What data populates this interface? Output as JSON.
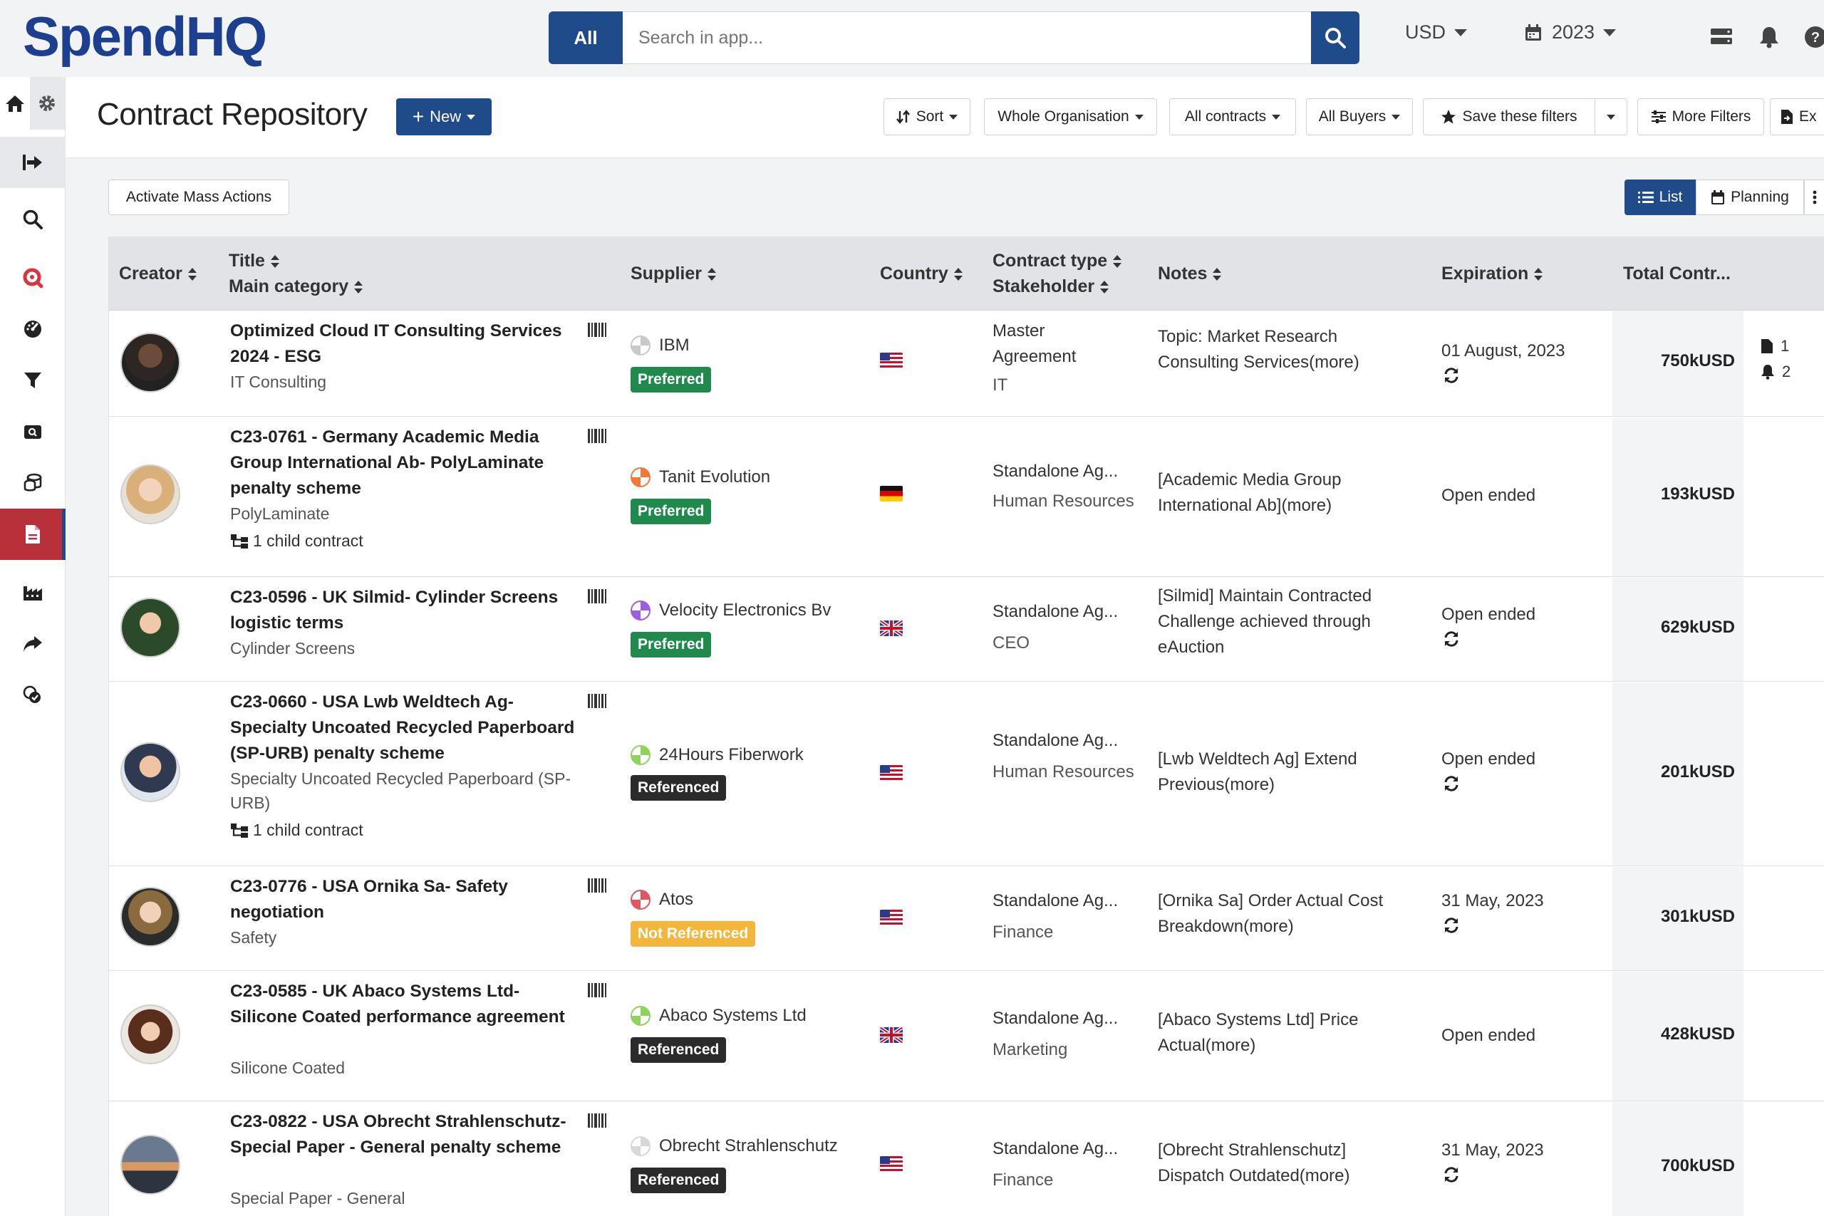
{
  "app": {
    "logo_text": "SpendHQ"
  },
  "search": {
    "scope_label": "All",
    "placeholder": "Search in app..."
  },
  "topbar": {
    "currency": "USD",
    "year": "2023"
  },
  "page": {
    "title": "Contract Repository",
    "new_label": "New"
  },
  "filters": {
    "sort": "Sort",
    "organisation": "Whole Organisation",
    "contracts": "All contracts",
    "buyers": "All Buyers",
    "save": "Save these filters",
    "more": "More Filters",
    "export": "Ex"
  },
  "toolbar": {
    "mass_actions": "Activate Mass Actions",
    "view_list": "List",
    "view_planning": "Planning"
  },
  "columns": {
    "creator": "Creator",
    "title": "Title",
    "main_category": "Main category",
    "supplier": "Supplier",
    "country": "Country",
    "contract_type": "Contract type",
    "stakeholder": "Stakeholder",
    "notes": "Notes",
    "expiration": "Expiration",
    "total": "Total Contr..."
  },
  "rows": [
    {
      "title": "Optimized Cloud IT Consulting Services 2024 - ESG",
      "category": "IT Consulting",
      "child": "",
      "supplier": "IBM",
      "status": "Preferred",
      "country": "US",
      "contract_type": "Master Agreement",
      "stakeholder": "IT",
      "notes": "Topic: Market Research Consulting Services(more)",
      "expiration": "01 August, 2023",
      "renew": true,
      "total": "750kUSD",
      "docs": "1",
      "alerts": "2",
      "supplier_color": "#c9c9c9"
    },
    {
      "title": "C23-0761 - Germany Academic Media Group International Ab- PolyLaminate penalty scheme",
      "category": "PolyLaminate",
      "child": "1 child contract",
      "supplier": "Tanit Evolution",
      "status": "Preferred",
      "country": "DE",
      "contract_type": "Standalone Ag...",
      "stakeholder": "Human Resources",
      "notes": "[Academic Media Group International Ab](more)",
      "expiration": "Open ended",
      "renew": false,
      "total": "193kUSD",
      "supplier_color": "#f07a3a"
    },
    {
      "title": "C23-0596 - UK Silmid- Cylinder Screens logistic terms",
      "category": "Cylinder Screens",
      "child": "",
      "supplier": "Velocity Electronics Bv",
      "status": "Preferred",
      "country": "UK",
      "contract_type": "Standalone Ag...",
      "stakeholder": "CEO",
      "notes": "[Silmid] Maintain Contracted Challenge achieved through eAuction",
      "expiration": "Open ended",
      "renew": true,
      "total": "629kUSD",
      "supplier_color": "#9b5de5"
    },
    {
      "title": "C23-0660 - USA Lwb Weldtech Ag- Specialty Uncoated Recycled Paperboard (SP-URB) penalty scheme",
      "category": "Specialty Uncoated Recycled Paperboard (SP-URB)",
      "child": "1 child contract",
      "supplier": "24Hours Fiberwork",
      "status": "Referenced",
      "country": "US",
      "contract_type": "Standalone Ag...",
      "stakeholder": "Human Resources",
      "notes": "[Lwb Weldtech Ag] Extend Previous(more)",
      "expiration": "Open ended",
      "renew": true,
      "total": "201kUSD",
      "supplier_color": "#8fd35a"
    },
    {
      "title": "C23-0776 - USA Ornika Sa- Safety negotiation",
      "category": "Safety",
      "child": "",
      "supplier": "Atos",
      "status": "Not Referenced",
      "country": "US",
      "contract_type": "Standalone Ag...",
      "stakeholder": "Finance",
      "notes": "[Ornika Sa] Order Actual Cost Breakdown(more)",
      "expiration": "31 May, 2023",
      "renew": true,
      "total": "301kUSD",
      "supplier_color": "#e0575f"
    },
    {
      "title": "C23-0585 - UK Abaco Systems Ltd- Silicone Coated performance agreement",
      "category": "Silicone Coated",
      "child": "",
      "supplier": "Abaco Systems Ltd",
      "status": "Referenced",
      "country": "UK",
      "contract_type": "Standalone Ag...",
      "stakeholder": "Marketing",
      "notes": "[Abaco Systems Ltd] Price Actual(more)",
      "expiration": "Open ended",
      "renew": false,
      "total": "428kUSD",
      "supplier_color": "#8fd35a"
    },
    {
      "title": "C23-0822 - USA Obrecht Strahlenschutz- Special Paper - General penalty scheme",
      "category": "Special Paper - General",
      "child": "",
      "supplier": "Obrecht Strahlenschutz",
      "status": "Referenced",
      "country": "US",
      "contract_type": "Standalone Ag...",
      "stakeholder": "Finance",
      "notes": "[Obrecht Strahlenschutz] Dispatch Outdated(more)",
      "expiration": "31 May, 2023",
      "renew": true,
      "total": "700kUSD",
      "supplier_color": "#d8d8d8"
    }
  ]
}
